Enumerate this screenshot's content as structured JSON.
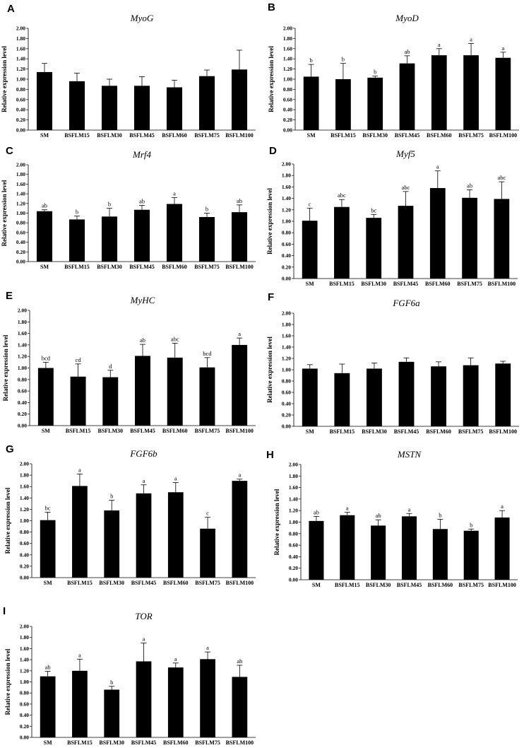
{
  "chart_data": [
    {
      "panel": "A",
      "type": "bar",
      "title": "MyoG",
      "ylabel": "Relative expression level",
      "ylim": [
        0,
        2
      ],
      "yticks": [
        "0.00",
        "0.20",
        "0.40",
        "0.60",
        "0.80",
        "1.00",
        "1.20",
        "1.40",
        "1.60",
        "1.80",
        "2.00"
      ],
      "categories": [
        "SM",
        "BSFLM15",
        "BSFLM30",
        "BSFLM45",
        "BSFLM60",
        "BSFLM75",
        "BSFLM100"
      ],
      "values": [
        1.14,
        0.96,
        0.87,
        0.87,
        0.84,
        1.06,
        1.19
      ],
      "errors": [
        0.17,
        0.16,
        0.13,
        0.18,
        0.14,
        0.12,
        0.38
      ],
      "labels": [
        "",
        "",
        "",
        "",
        "",
        "",
        ""
      ]
    },
    {
      "panel": "B",
      "type": "bar",
      "title": "MyoD",
      "ylabel": "Relative expression level",
      "ylim": [
        0,
        2
      ],
      "yticks": [
        "0.00",
        "0.20",
        "0.40",
        "0.60",
        "0.80",
        "1.00",
        "1.20",
        "1.40",
        "1.60",
        "1.80",
        "2.00"
      ],
      "categories": [
        "SM",
        "BSFLM15",
        "BSFLM30",
        "BSFLM45",
        "BSFLM60",
        "BSFLM75",
        "BSFLM100"
      ],
      "values": [
        1.05,
        1.0,
        1.03,
        1.31,
        1.47,
        1.47,
        1.42
      ],
      "errors": [
        0.24,
        0.31,
        0.03,
        0.15,
        0.13,
        0.23,
        0.11
      ],
      "labels": [
        "b",
        "b",
        "b",
        "ab",
        "a",
        "a",
        "a"
      ]
    },
    {
      "panel": "C",
      "type": "bar",
      "title": "Mrf4",
      "ylabel": "Relative expression level",
      "ylim": [
        0,
        2
      ],
      "yticks": [
        "0.00",
        "0.20",
        "0.40",
        "0.60",
        "0.80",
        "1.00",
        "1.20",
        "1.40",
        "1.60",
        "1.80",
        "2.00"
      ],
      "categories": [
        "SM",
        "BSFLM15",
        "BSFLM30",
        "BSFLM45",
        "BSFLM60",
        "BSFLM75",
        "BSFLM100"
      ],
      "values": [
        1.04,
        0.87,
        0.93,
        1.07,
        1.19,
        0.92,
        1.02
      ],
      "errors": [
        0.03,
        0.07,
        0.17,
        0.09,
        0.13,
        0.08,
        0.15
      ],
      "labels": [
        "ab",
        "b",
        "b",
        "ab",
        "a",
        "b",
        "ab"
      ]
    },
    {
      "panel": "D",
      "type": "bar",
      "title": "Myf5",
      "ylabel": "Relative expression level",
      "ylim": [
        0,
        2
      ],
      "yticks": [
        "0.00",
        "0.20",
        "0.40",
        "0.60",
        "0.80",
        "1.00",
        "1.20",
        "1.40",
        "1.60",
        "1.80",
        "2.00"
      ],
      "categories": [
        "SM",
        "BSFLM15",
        "BSFLM30",
        "BSFLM45",
        "BSFLM60",
        "BSFLM75",
        "BSFLM100"
      ],
      "values": [
        1.01,
        1.25,
        1.06,
        1.27,
        1.58,
        1.41,
        1.39
      ],
      "errors": [
        0.22,
        0.13,
        0.06,
        0.25,
        0.3,
        0.14,
        0.3
      ],
      "labels": [
        "c",
        "abc",
        "bc",
        "abc",
        "a",
        "ab",
        "abc"
      ]
    },
    {
      "panel": "E",
      "type": "bar",
      "title": "MyHC",
      "ylabel": "Relative expression level",
      "ylim": [
        0,
        2
      ],
      "yticks": [
        "0.00",
        "0.20",
        "0.40",
        "0.60",
        "0.80",
        "1.00",
        "1.20",
        "1.40",
        "1.60",
        "1.80",
        "2.00"
      ],
      "categories": [
        "SM",
        "BSFLM15",
        "BSFLM30",
        "BSFLM45",
        "BSFLM60",
        "BSFLM75",
        "BSFLM100"
      ],
      "values": [
        1.0,
        0.85,
        0.84,
        1.21,
        1.18,
        1.01,
        1.4
      ],
      "errors": [
        0.1,
        0.22,
        0.12,
        0.2,
        0.25,
        0.17,
        0.12
      ],
      "labels": [
        "bcd",
        "cd",
        "d",
        "ab",
        "abc",
        "bcd",
        "a"
      ]
    },
    {
      "panel": "F",
      "type": "bar",
      "title": "FGF6a",
      "ylabel": "Relative expression level",
      "ylim": [
        0,
        2
      ],
      "yticks": [
        "0.00",
        "0.20",
        "0.40",
        "0.60",
        "0.80",
        "1.00",
        "1.20",
        "1.40",
        "1.60",
        "1.80",
        "2.00"
      ],
      "categories": [
        "SM",
        "BSFLM15",
        "BSFLM30",
        "BSFLM45",
        "BSFLM60",
        "BSFLM75",
        "BSFLM100"
      ],
      "values": [
        1.02,
        0.94,
        1.02,
        1.14,
        1.06,
        1.08,
        1.11
      ],
      "errors": [
        0.07,
        0.16,
        0.1,
        0.07,
        0.08,
        0.13,
        0.04
      ],
      "labels": [
        "",
        "",
        "",
        "",
        "",
        "",
        ""
      ]
    },
    {
      "panel": "G",
      "type": "bar",
      "title": "FGF6b",
      "ylabel": "Relative expression level",
      "ylim": [
        0,
        2
      ],
      "yticks": [
        "0.00",
        "0.20",
        "0.40",
        "0.60",
        "0.80",
        "1.00",
        "1.20",
        "1.40",
        "1.60",
        "1.80",
        "2.00"
      ],
      "categories": [
        "SM",
        "BSFLM15",
        "BSFLM30",
        "BSFLM45",
        "BSFLM60",
        "BSFLM75",
        "BSFLM100"
      ],
      "values": [
        1.01,
        1.61,
        1.18,
        1.48,
        1.5,
        0.86,
        1.7
      ],
      "errors": [
        0.14,
        0.21,
        0.18,
        0.15,
        0.17,
        0.2,
        0.03
      ],
      "labels": [
        "bc",
        "a",
        "b",
        "a",
        "a",
        "c",
        "a"
      ]
    },
    {
      "panel": "H",
      "type": "bar",
      "title": "MSTN",
      "ylabel": "Relative expression level",
      "ylim": [
        0,
        2
      ],
      "yticks": [
        "0.00",
        "0.20",
        "0.40",
        "0.60",
        "0.80",
        "1.00",
        "1.20",
        "1.40",
        "1.60",
        "1.80",
        "2.00"
      ],
      "categories": [
        "SM",
        "BSFLM15",
        "BSFLM30",
        "BSFLM45",
        "BSFLM60",
        "BSFLM75",
        "BSFLM100"
      ],
      "values": [
        1.02,
        1.12,
        0.94,
        1.1,
        0.88,
        0.85,
        1.08
      ],
      "errors": [
        0.08,
        0.05,
        0.1,
        0.05,
        0.17,
        0.03,
        0.12
      ],
      "labels": [
        "ab",
        "a",
        "ab",
        "a",
        "b",
        "b",
        "a"
      ]
    },
    {
      "panel": "I",
      "type": "bar",
      "title": "TOR",
      "ylabel": "Relative expression level",
      "ylim": [
        0,
        2
      ],
      "yticks": [
        "0.00",
        "0.20",
        "0.40",
        "0.60",
        "0.80",
        "1.00",
        "1.20",
        "1.40",
        "1.60",
        "1.80",
        "2.00"
      ],
      "categories": [
        "SM",
        "BSFLM15",
        "BSFLM30",
        "BSFLM45",
        "BSFLM60",
        "BSFLM75",
        "BSFLM100"
      ],
      "values": [
        1.1,
        1.2,
        0.86,
        1.37,
        1.26,
        1.41,
        1.09
      ],
      "errors": [
        0.09,
        0.21,
        0.06,
        0.33,
        0.08,
        0.13,
        0.21
      ],
      "labels": [
        "ab",
        "a",
        "b",
        "a",
        "a",
        "a",
        "ab"
      ]
    }
  ]
}
